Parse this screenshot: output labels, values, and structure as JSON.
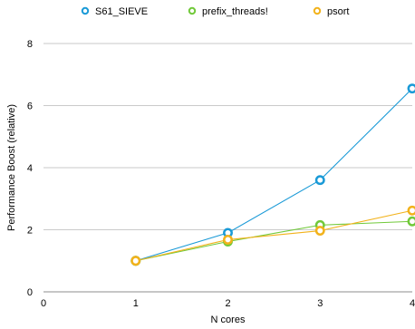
{
  "chart_data": {
    "type": "line",
    "title": "",
    "xlabel": "N cores",
    "ylabel": "Performance Boost (relative)",
    "xlim": [
      0,
      4
    ],
    "ylim": [
      0,
      8
    ],
    "x_ticks": [
      0,
      1,
      2,
      3,
      4
    ],
    "y_ticks": [
      0,
      2,
      4,
      6,
      8
    ],
    "grid": "horizontal",
    "legend_position": "top",
    "series": [
      {
        "name": "S61_SIEVE",
        "color": "#1a9ad7",
        "x": [
          1,
          2,
          3,
          4
        ],
        "y": [
          1.0,
          1.9,
          3.6,
          6.55
        ]
      },
      {
        "name": "prefix_threads!",
        "color": "#71c93a",
        "x": [
          1,
          2,
          3,
          4
        ],
        "y": [
          1.0,
          1.62,
          2.15,
          2.27
        ]
      },
      {
        "name": "psort",
        "color": "#f2b21b",
        "x": [
          1,
          2,
          3,
          4
        ],
        "y": [
          1.0,
          1.68,
          1.97,
          2.62
        ]
      }
    ]
  }
}
